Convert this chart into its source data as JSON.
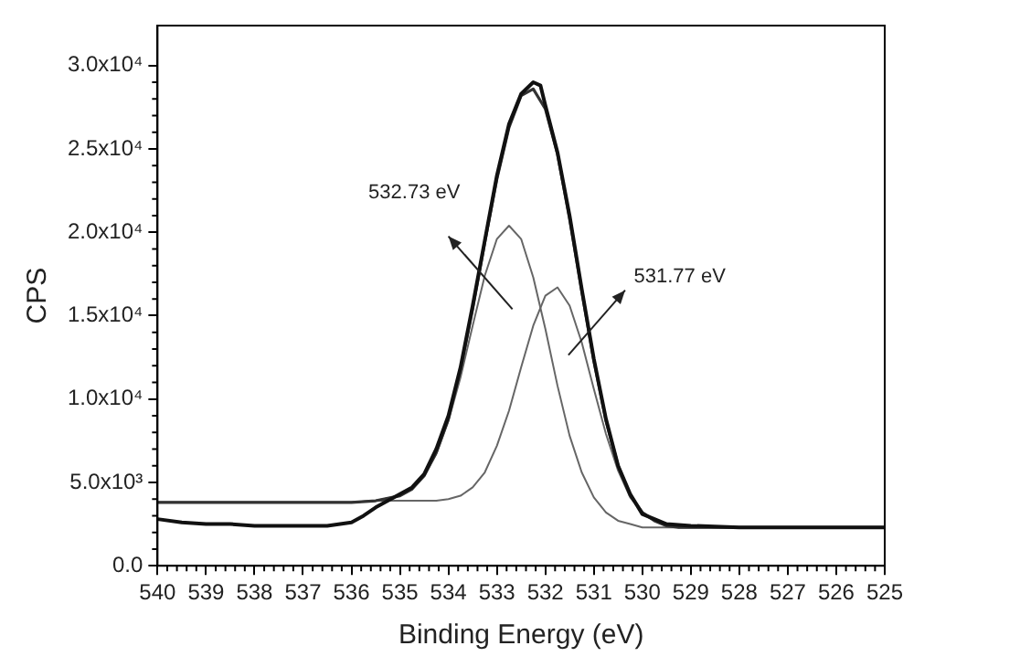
{
  "chart_data": {
    "type": "line",
    "xlabel": "Binding Energy (eV)",
    "ylabel": "CPS",
    "xlim": [
      540,
      525
    ],
    "xticks": [
      540,
      539,
      538,
      537,
      536,
      535,
      534,
      533,
      532,
      531,
      530,
      529,
      528,
      527,
      526,
      525
    ],
    "ylim": [
      0,
      32400
    ],
    "yticks": [
      {
        "value": 0,
        "label": "0.0"
      },
      {
        "value": 5000,
        "label": "5.0x10³"
      },
      {
        "value": 10000,
        "label": "1.0x10⁴"
      },
      {
        "value": 15000,
        "label": "1.5x10⁴"
      },
      {
        "value": 20000,
        "label": "2.0x10⁴"
      },
      {
        "value": 25000,
        "label": "2.5x10⁴"
      },
      {
        "value": 30000,
        "label": "3.0x10⁴"
      }
    ],
    "grid": false,
    "legend": false,
    "marker": "none",
    "line_style": "solid",
    "annotations": [
      "532.73 eV",
      "531.77 eV"
    ],
    "series": [
      {
        "color": "#111111",
        "x": [
          540,
          539.5,
          539,
          538.5,
          538,
          537.5,
          537,
          536.5,
          536,
          535.75,
          535.5,
          535.25,
          535,
          534.75,
          534.5,
          534.25,
          534,
          533.75,
          533.5,
          533.25,
          533,
          532.75,
          532.5,
          532.25,
          532.1,
          532,
          531.75,
          531.5,
          531.25,
          531,
          530.75,
          530.5,
          530.25,
          530,
          529.5,
          529,
          528,
          527,
          526,
          525
        ],
        "values": [
          2800,
          2600,
          2500,
          2500,
          2400,
          2400,
          2400,
          2400,
          2600,
          3000,
          3500,
          3900,
          4300,
          4700,
          5500,
          7000,
          9000,
          11900,
          15600,
          19500,
          23400,
          26500,
          28300,
          29000,
          28800,
          27600,
          24800,
          21000,
          16600,
          12400,
          8800,
          6000,
          4300,
          3100,
          2500,
          2400,
          2300,
          2300,
          2300,
          2300
        ]
      },
      {
        "color": "#333333",
        "x": [
          540,
          538,
          536,
          535.5,
          535,
          534.75,
          534.5,
          534.25,
          534,
          533.75,
          533.5,
          533.25,
          533,
          532.75,
          532.5,
          532.25,
          532,
          531.75,
          531.5,
          531.25,
          531,
          530.75,
          530.5,
          530.25,
          530,
          529.75,
          529.5,
          529.25,
          529,
          528,
          527,
          526,
          525
        ],
        "values": [
          3800,
          3800,
          3800,
          3900,
          4200,
          4600,
          5400,
          6800,
          8800,
          11800,
          15400,
          19400,
          23200,
          26300,
          28200,
          28600,
          27400,
          24700,
          20800,
          16500,
          12300,
          8700,
          6000,
          4200,
          3200,
          2700,
          2400,
          2300,
          2300,
          2300,
          2300,
          2300,
          2300
        ]
      },
      {
        "color": "#666666",
        "x": [
          540,
          538,
          536,
          535.5,
          535,
          534.75,
          534.5,
          534.25,
          534,
          533.75,
          533.5,
          533.25,
          533,
          532.75,
          532.5,
          532.25,
          532,
          531.75,
          531.5,
          531.25,
          531,
          530.75,
          530.5,
          530.25,
          530,
          529.75,
          529.5,
          529.25,
          529,
          528,
          527,
          526,
          525
        ],
        "values": [
          3800,
          3800,
          3800,
          3900,
          4200,
          4600,
          5400,
          6700,
          8700,
          11300,
          14400,
          17400,
          19600,
          20400,
          19600,
          17300,
          14200,
          10800,
          7800,
          5600,
          4100,
          3200,
          2700,
          2500,
          2300,
          2300,
          2300,
          2300,
          2300,
          2300,
          2300,
          2300,
          2300
        ]
      },
      {
        "color": "#666666",
        "x": [
          540,
          538,
          536,
          535.5,
          535,
          534.75,
          534.5,
          534.25,
          534,
          533.75,
          533.5,
          533.25,
          533,
          532.75,
          532.5,
          532.25,
          532,
          531.75,
          531.5,
          531.25,
          531,
          530.75,
          530.5,
          530.25,
          530,
          529.75,
          529.5,
          529.25,
          529,
          528,
          527,
          526,
          525
        ],
        "values": [
          3800,
          3800,
          3800,
          3900,
          3900,
          3900,
          3900,
          3900,
          4000,
          4200,
          4700,
          5600,
          7200,
          9300,
          11900,
          14400,
          16200,
          16700,
          15600,
          13400,
          10600,
          7900,
          5700,
          4100,
          3200,
          2700,
          2400,
          2300,
          2300,
          2300,
          2300,
          2300,
          2300
        ]
      }
    ]
  }
}
